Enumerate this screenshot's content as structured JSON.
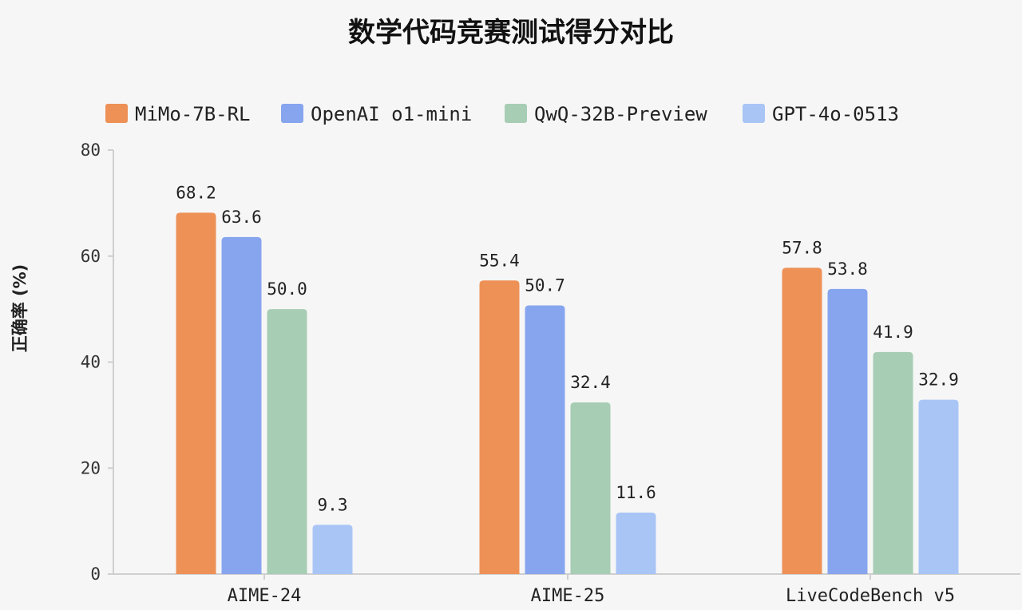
{
  "chart_data": {
    "type": "bar",
    "title": "数学代码竞赛测试得分对比",
    "xlabel": "",
    "ylabel": "正确率 (%)",
    "ylim": [
      0,
      80
    ],
    "yticks": [
      0,
      20,
      40,
      60,
      80
    ],
    "grid": false,
    "legend_position": "top",
    "categories": [
      "AIME-24",
      "AIME-25",
      "LiveCodeBench v5"
    ],
    "series": [
      {
        "name": "MiMo-7B-RL",
        "color": "#ee9157",
        "values": [
          68.2,
          55.4,
          57.8
        ],
        "labels": [
          "68.2",
          "55.4",
          "57.8"
        ]
      },
      {
        "name": "OpenAI o1-mini",
        "color": "#87a5ef",
        "values": [
          63.6,
          50.7,
          53.8
        ],
        "labels": [
          "63.6",
          "50.7",
          "53.8"
        ]
      },
      {
        "name": "QwQ-32B-Preview",
        "color": "#a7cdb4",
        "values": [
          50.0,
          32.4,
          41.9
        ],
        "labels": [
          "50.0",
          "32.4",
          "41.9"
        ]
      },
      {
        "name": "GPT-4o-0513",
        "color": "#a9c5f6",
        "values": [
          9.3,
          11.6,
          32.9
        ],
        "labels": [
          "9.3",
          "11.6",
          "32.9"
        ]
      }
    ]
  }
}
